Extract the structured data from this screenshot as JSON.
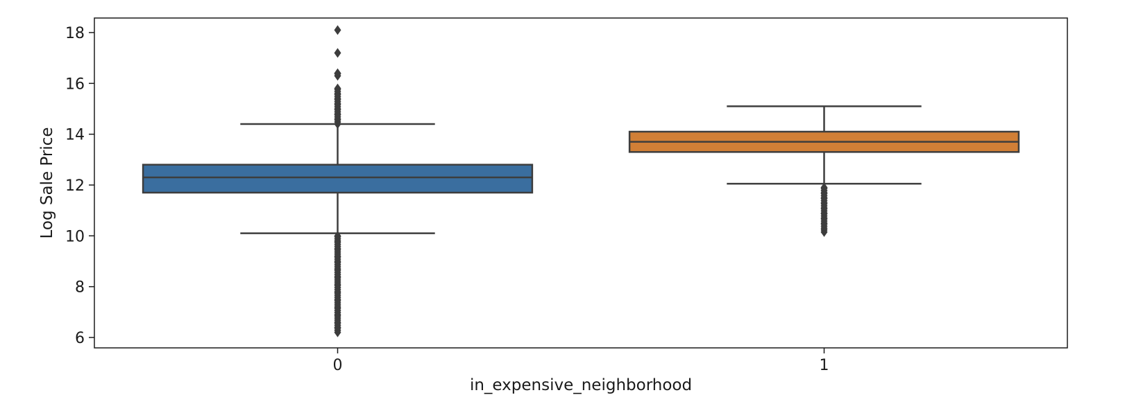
{
  "chart_data": {
    "type": "box",
    "xlabel": "in_expensive_neighborhood",
    "ylabel": "Log Sale Price",
    "ylim": [
      5.7,
      18.7
    ],
    "yticks": [
      6,
      8,
      10,
      12,
      14,
      16,
      18
    ],
    "categories": [
      "0",
      "1"
    ],
    "boxes": [
      {
        "category": "0",
        "color": "#3a6e9f",
        "q1": 11.7,
        "median": 12.3,
        "q3": 12.8,
        "whisker_low": 10.1,
        "whisker_high": 14.4,
        "outliers_high": [
          14.4,
          14.6,
          14.8,
          15.0,
          15.2,
          15.4,
          15.6,
          15.8,
          16.3,
          16.4,
          17.2,
          18.1
        ],
        "outliers_low": [
          10.0,
          9.8,
          9.5,
          9.2,
          9.0,
          8.7,
          8.4,
          8.1,
          7.8,
          7.5,
          7.2,
          6.9,
          6.6,
          6.4,
          6.2
        ]
      },
      {
        "category": "1",
        "color": "#d17f36",
        "q1": 13.3,
        "median": 13.7,
        "q3": 14.1,
        "whisker_low": 12.05,
        "whisker_high": 15.1,
        "outliers_high": [],
        "outliers_low": [
          11.9,
          11.7,
          11.5,
          11.3,
          11.1,
          10.9,
          10.7,
          10.5,
          10.3,
          10.15
        ]
      }
    ]
  }
}
